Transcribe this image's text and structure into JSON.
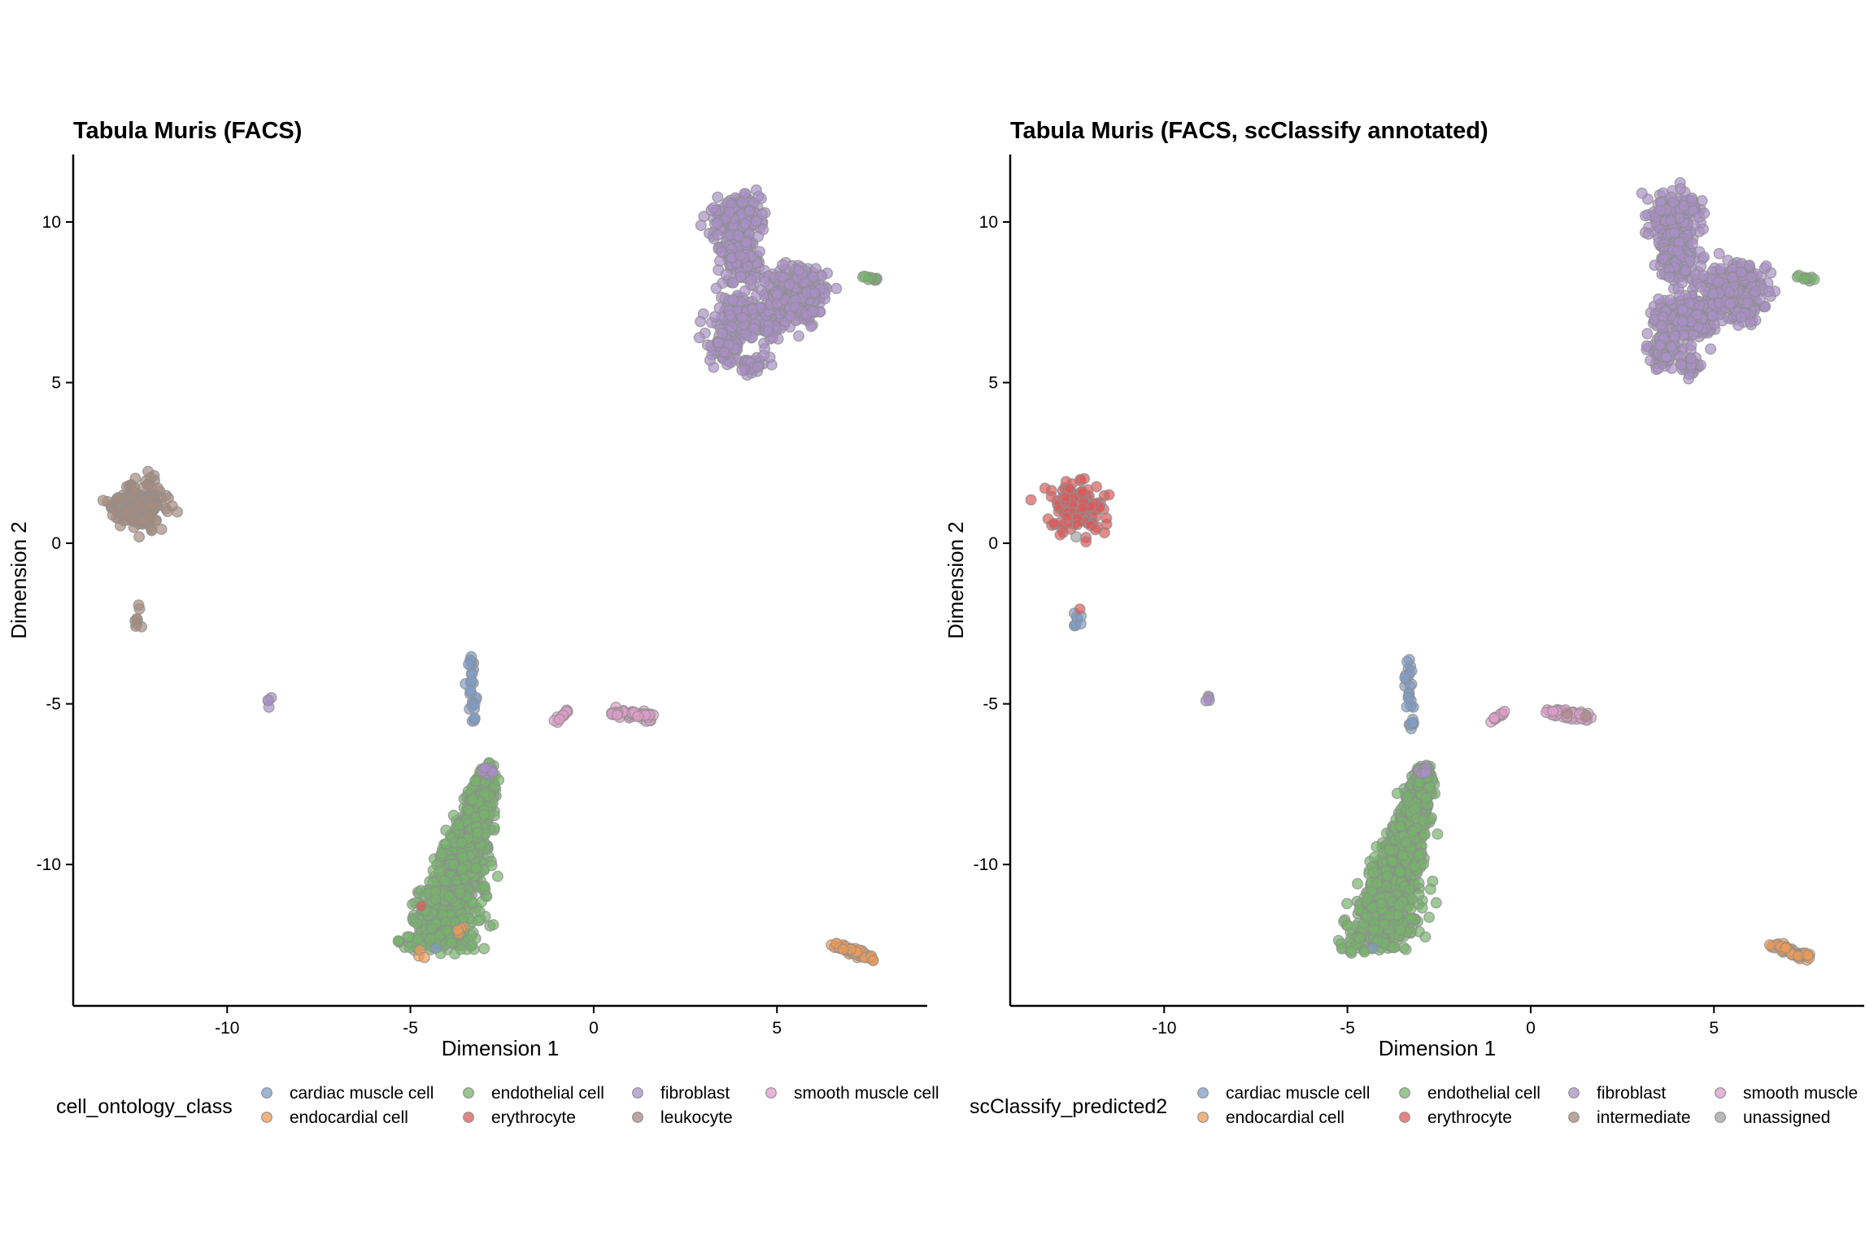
{
  "colors": {
    "cardiac muscle cell": "#7e9cc8",
    "endocardial cell": "#ee9a55",
    "endothelial cell": "#75b46a",
    "erythrocyte": "#dc5a5a",
    "fibroblast": "#a98ec8",
    "leukocyte": "#a68a7c",
    "intermediate": "#a68a7c",
    "smooth muscle cell": "#e09ccb",
    "unassigned": "#a3a3a3"
  },
  "chart_data": [
    {
      "type": "scatter",
      "title": "Tabula Muris (FACS)",
      "xlabel": "Dimension 1",
      "ylabel": "Dimension 2",
      "xlim": [
        -14.2,
        9.1
      ],
      "ylim": [
        -14.4,
        12.1
      ],
      "xticks": [
        -10,
        -5,
        0,
        5
      ],
      "yticks": [
        -10,
        -5,
        0,
        5,
        10
      ],
      "grid": false,
      "legend": {
        "position": "bottom",
        "title": "cell_ontology_class",
        "entries": [
          "cardiac muscle cell",
          "endocardial cell",
          "endothelial cell",
          "erythrocyte",
          "fibroblast",
          "leukocyte",
          "smooth muscle cell"
        ]
      },
      "clusters": [
        {
          "label": "fibroblast",
          "approx_center": [
            4.5,
            8.3
          ],
          "approx_cells": 900
        },
        {
          "label": "leukocyte",
          "approx_center": [
            -12.3,
            1.1
          ],
          "approx_cells": 160
        },
        {
          "label": "leukocyte",
          "approx_center": [
            -12.4,
            -2.4
          ],
          "approx_cells": 8
        },
        {
          "label": "fibroblast",
          "approx_center": [
            -8.8,
            -4.9
          ],
          "approx_cells": 4
        },
        {
          "label": "cardiac muscle cell",
          "approx_center": [
            -3.2,
            -4.7
          ],
          "approx_cells": 30
        },
        {
          "label": "smooth muscle cell",
          "approx_center": [
            -0.9,
            -5.4
          ],
          "approx_cells": 12
        },
        {
          "label": "smooth muscle cell",
          "approx_center": [
            1.0,
            -5.35
          ],
          "approx_cells": 60
        },
        {
          "label": "endothelial cell",
          "approx_center": [
            -4.0,
            -11.2
          ],
          "approx_cells": 1100
        },
        {
          "label": "fibroblast",
          "approx_center": [
            -2.9,
            -7.1
          ],
          "approx_cells": 10
        },
        {
          "label": "endocardial cell",
          "approx_center": [
            7.0,
            -12.8
          ],
          "approx_cells": 70
        }
      ]
    },
    {
      "type": "scatter",
      "title": "Tabula Muris (FACS, scClassify annotated)",
      "xlabel": "Dimension 1",
      "ylabel": "Dimension 2",
      "xlim": [
        -14.2,
        9.1
      ],
      "ylim": [
        -14.4,
        12.1
      ],
      "xticks": [
        -10,
        -5,
        0,
        5
      ],
      "yticks": [
        -10,
        -5,
        0,
        5,
        10
      ],
      "grid": false,
      "legend": {
        "position": "bottom",
        "title": "scClassify_predicted2",
        "entries": [
          "cardiac muscle cell",
          "endocardial cell",
          "endothelial cell",
          "erythrocyte",
          "fibroblast",
          "intermediate",
          "smooth muscle",
          "unassigned"
        ]
      },
      "clusters": [
        {
          "label": "fibroblast",
          "approx_center": [
            4.5,
            8.3
          ],
          "approx_cells": 900
        },
        {
          "label": "erythrocyte",
          "approx_center": [
            -12.3,
            1.1
          ],
          "approx_cells": 150
        },
        {
          "label": "cardiac muscle cell",
          "approx_center": [
            -12.4,
            -2.4
          ],
          "approx_cells": 8
        },
        {
          "label": "fibroblast",
          "approx_center": [
            -8.8,
            -4.9
          ],
          "approx_cells": 4
        },
        {
          "label": "cardiac muscle cell",
          "approx_center": [
            -3.2,
            -4.7
          ],
          "approx_cells": 30
        },
        {
          "label": "smooth muscle cell",
          "approx_center": [
            -0.9,
            -5.4
          ],
          "approx_cells": 12
        },
        {
          "label": "smooth muscle cell",
          "approx_center": [
            1.0,
            -5.35
          ],
          "approx_cells": 60
        },
        {
          "label": "endothelial cell",
          "approx_center": [
            -4.0,
            -11.2
          ],
          "approx_cells": 1100
        },
        {
          "label": "fibroblast",
          "approx_center": [
            -2.9,
            -7.1
          ],
          "approx_cells": 10
        },
        {
          "label": "endocardial cell",
          "approx_center": [
            7.0,
            -12.8
          ],
          "approx_cells": 70
        }
      ]
    }
  ]
}
